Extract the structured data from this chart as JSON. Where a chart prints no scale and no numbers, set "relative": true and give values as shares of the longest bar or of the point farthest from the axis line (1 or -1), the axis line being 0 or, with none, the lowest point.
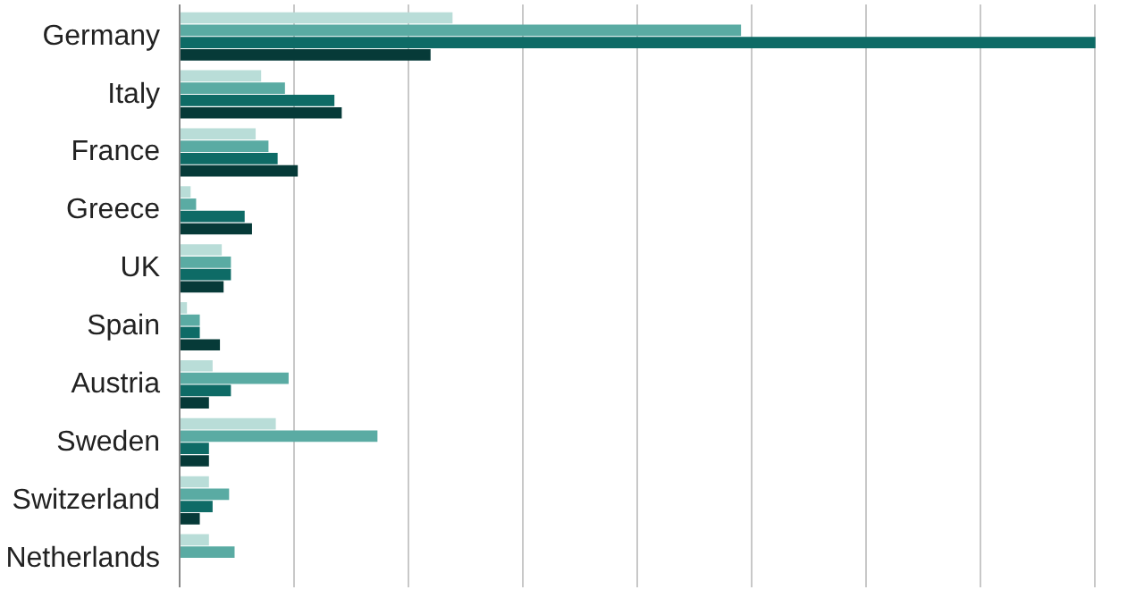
{
  "chart_data": {
    "type": "bar",
    "orientation": "horizontal",
    "relative": true,
    "grid": "x",
    "categories": [
      "Germany",
      "Italy",
      "France",
      "Greece",
      "UK",
      "Spain",
      "Austria",
      "Sweden",
      "Switzerland",
      "Netherlands"
    ],
    "series": [
      {
        "color": "#b9ddd8",
        "values": [
          0.298,
          0.089,
          0.083,
          0.012,
          0.046,
          0.008,
          0.036,
          0.105,
          0.032,
          0.032
        ]
      },
      {
        "color": "#5aaba3",
        "values": [
          0.613,
          0.115,
          0.097,
          0.018,
          0.056,
          0.022,
          0.119,
          0.216,
          0.054,
          0.06
        ]
      },
      {
        "color": "#0e6b66",
        "values": [
          1,
          0.169,
          0.107,
          0.071,
          0.056,
          0.022,
          0.056,
          0.032,
          0.036,
          null
        ]
      },
      {
        "color": "#063a38",
        "values": [
          0.274,
          0.177,
          0.129,
          0.079,
          0.048,
          0.044,
          0.032,
          0.032,
          0.022,
          null
        ]
      }
    ]
  }
}
